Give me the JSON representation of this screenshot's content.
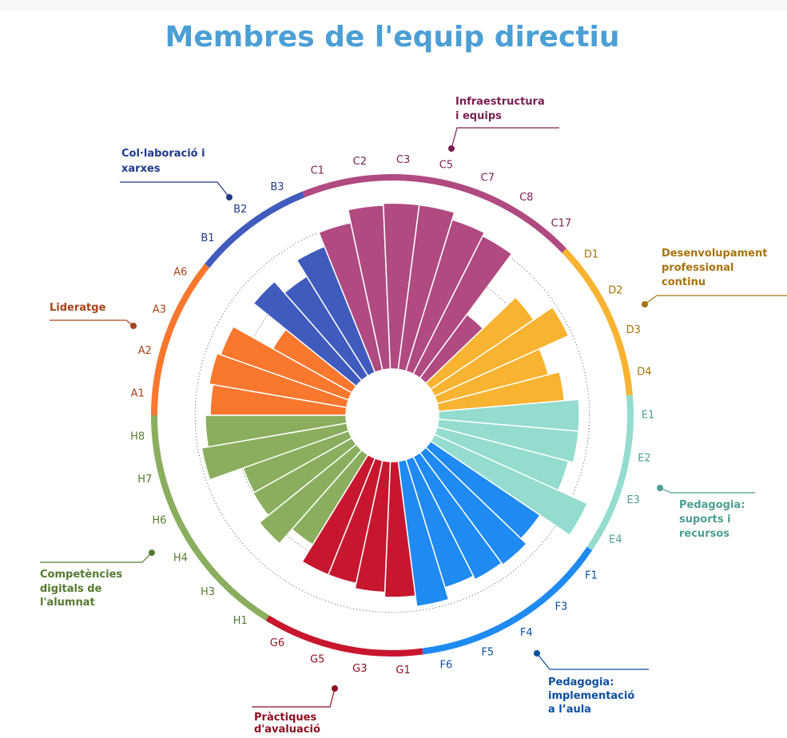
{
  "chart_data": {
    "type": "radial_bar",
    "title": "Membres de l'equip directiu",
    "ylim": [
      0,
      5
    ],
    "yticks": [
      3,
      4
    ],
    "grid": true,
    "groups": [
      {
        "name_lines": [
          "Lideratge"
        ],
        "color": "#fa772e",
        "label_color": "#a8431a",
        "categories": [
          "A1",
          "A2",
          "A3",
          "A6"
        ],
        "values": [
          3.6,
          3.7,
          3.6,
          2.4
        ]
      },
      {
        "name_lines": [
          "Col·laboració i",
          "xarxes"
        ],
        "color": "#3f5bbd",
        "label_color": "#1f3a8a",
        "categories": [
          "B1",
          "B2",
          "B3"
        ],
        "values": [
          3.5,
          3.1,
          3.6
        ]
      },
      {
        "name_lines": [
          "Infraestructura",
          "i equips"
        ],
        "color": "#b04a80",
        "label_color": "#7a1f52",
        "categories": [
          "C1",
          "C2",
          "C3",
          "C5",
          "C7",
          "C8",
          "C17"
        ],
        "values": [
          4.0,
          4.35,
          4.4,
          4.4,
          4.2,
          4.1,
          2.1
        ]
      },
      {
        "name_lines": [
          "Desenvolupament",
          "professional",
          "continu"
        ],
        "color": "#f8b330",
        "label_color": "#a8740e",
        "categories": [
          "D1",
          "D2",
          "D3",
          "D4"
        ],
        "values": [
          3.3,
          3.9,
          3.05,
          3.35
        ]
      },
      {
        "name_lines": [
          "Pedagogia:",
          "suports i",
          "recursos"
        ],
        "color": "#93dccf",
        "label_color": "#4e9e92",
        "categories": [
          "E1",
          "E2",
          "E3",
          "E4"
        ],
        "values": [
          3.73,
          3.73,
          3.6,
          4.45
        ]
      },
      {
        "name_lines": [
          "Pedagogia:",
          "implementació",
          "a l’aula"
        ],
        "color": "#1e8af2",
        "label_color": "#0d4fa0",
        "categories": [
          "F1",
          "F3",
          "F4",
          "F5",
          "F6"
        ],
        "values": [
          3.5,
          3.7,
          3.65,
          3.55,
          3.88
        ]
      },
      {
        "name_lines": [
          "Pràctiques",
          "d'avaluació"
        ],
        "color": "#c8162f",
        "label_color": "#8e0f1f",
        "categories": [
          "G1",
          "G3",
          "G5",
          "G6"
        ],
        "values": [
          3.6,
          3.47,
          3.33,
          3.33
        ]
      },
      {
        "name_lines": [
          "Competències",
          "digitals de",
          "l'alumnat"
        ],
        "color": "#8aae5e",
        "label_color": "#557a30",
        "categories": [
          "H1",
          "H3",
          "H4",
          "H6",
          "H7",
          "H8"
        ],
        "values": [
          2.8,
          3.3,
          3.0,
          2.97,
          3.9,
          3.73
        ]
      }
    ]
  }
}
